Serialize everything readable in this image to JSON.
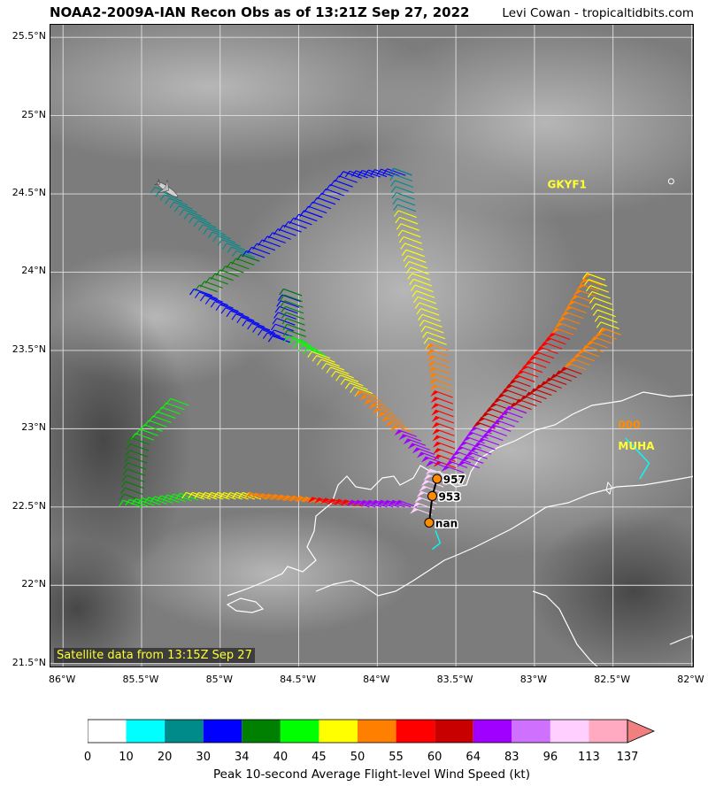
{
  "title": "NOAA2-2009A-IAN Recon Obs as of 13:21Z Sep 27, 2022",
  "credit": "Levi Cowan - tropicaltidbits.com",
  "satellite_note": "Satellite data from 13:15Z Sep 27",
  "map": {
    "lon_range": [
      -86.08,
      -81.98
    ],
    "lat_range": [
      21.47,
      25.58
    ],
    "lat_ticks": [
      {
        "v": 25.5,
        "label": "25.5°N"
      },
      {
        "v": 25.0,
        "label": "25°N"
      },
      {
        "v": 24.5,
        "label": "24.5°N"
      },
      {
        "v": 24.0,
        "label": "24°N"
      },
      {
        "v": 23.5,
        "label": "23.5°N"
      },
      {
        "v": 23.0,
        "label": "23°N"
      },
      {
        "v": 22.5,
        "label": "22.5°N"
      },
      {
        "v": 22.0,
        "label": "22°N"
      },
      {
        "v": 21.5,
        "label": "21.5°N"
      }
    ],
    "lon_ticks": [
      {
        "v": -86.0,
        "label": "86°W"
      },
      {
        "v": -85.5,
        "label": "85.5°W"
      },
      {
        "v": -85.0,
        "label": "85°W"
      },
      {
        "v": -84.5,
        "label": "84.5°W"
      },
      {
        "v": -84.0,
        "label": "84°W"
      },
      {
        "v": -83.5,
        "label": "83.5°W"
      },
      {
        "v": -83.0,
        "label": "83°W"
      },
      {
        "v": -82.5,
        "label": "82.5°W"
      },
      {
        "v": -82.0,
        "label": "82°W"
      }
    ],
    "stations": [
      {
        "id": "GKYF1",
        "lon": -82.85,
        "lat": 24.56,
        "color": "#ffff33",
        "value": ""
      },
      {
        "id": "MUHA",
        "lon": -82.4,
        "lat": 22.89,
        "color": "#ffff33",
        "value": "000",
        "value_color": "#ff8c00"
      }
    ],
    "pressure_obs": [
      {
        "label": "957",
        "lon": -83.62,
        "lat": 22.68
      },
      {
        "label": "953",
        "lon": -83.65,
        "lat": 22.57
      },
      {
        "label": "nan",
        "lon": -83.67,
        "lat": 22.4
      }
    ],
    "flight_segments": [
      {
        "from": [
          -85.3,
          24.5
        ],
        "to": [
          -84.75,
          24.07
        ],
        "kt": 22
      },
      {
        "from": [
          -84.75,
          24.07
        ],
        "to": [
          -84.35,
          24.35
        ],
        "kt": 32
      },
      {
        "from": [
          -84.35,
          24.35
        ],
        "to": [
          -84.1,
          24.6
        ],
        "kt": 30
      },
      {
        "from": [
          -84.1,
          24.6
        ],
        "to": [
          -83.78,
          24.62
        ],
        "kt": 30
      },
      {
        "from": [
          -83.78,
          24.62
        ],
        "to": [
          -83.75,
          24.35
        ],
        "kt": 28
      },
      {
        "from": [
          -83.75,
          24.35
        ],
        "to": [
          -83.7,
          24.1
        ],
        "kt": 45
      },
      {
        "from": [
          -83.7,
          24.1
        ],
        "to": [
          -83.55,
          23.5
        ],
        "kt": 47
      },
      {
        "from": [
          -83.55,
          23.5
        ],
        "to": [
          -83.52,
          23.2
        ],
        "kt": 52
      },
      {
        "from": [
          -83.52,
          23.2
        ],
        "to": [
          -83.5,
          22.75
        ],
        "kt": 58
      },
      {
        "from": [
          -84.75,
          24.07
        ],
        "to": [
          -85.05,
          23.85
        ],
        "kt": 36
      },
      {
        "from": [
          -85.05,
          23.85
        ],
        "to": [
          -84.55,
          23.55
        ],
        "kt": 30
      },
      {
        "from": [
          -84.55,
          23.55
        ],
        "to": [
          -84.48,
          23.85
        ],
        "kt": 30
      },
      {
        "from": [
          -84.48,
          23.85
        ],
        "to": [
          -84.45,
          23.55
        ],
        "kt": 36
      },
      {
        "from": [
          -84.45,
          23.55
        ],
        "to": [
          -84.3,
          23.45
        ],
        "kt": 40
      },
      {
        "from": [
          -84.3,
          23.45
        ],
        "to": [
          -84.0,
          23.2
        ],
        "kt": 46
      },
      {
        "from": [
          -84.0,
          23.2
        ],
        "to": [
          -83.75,
          22.95
        ],
        "kt": 52
      },
      {
        "from": [
          -83.75,
          22.95
        ],
        "to": [
          -83.55,
          22.75
        ],
        "kt": 70
      },
      {
        "from": [
          -85.2,
          23.15
        ],
        "to": [
          -85.45,
          22.9
        ],
        "kt": 40
      },
      {
        "from": [
          -85.45,
          22.9
        ],
        "to": [
          -85.5,
          22.5
        ],
        "kt": 36
      },
      {
        "from": [
          -85.5,
          22.5
        ],
        "to": [
          -85.1,
          22.55
        ],
        "kt": 42
      },
      {
        "from": [
          -85.1,
          22.55
        ],
        "to": [
          -84.7,
          22.55
        ],
        "kt": 47
      },
      {
        "from": [
          -84.7,
          22.55
        ],
        "to": [
          -84.3,
          22.52
        ],
        "kt": 52
      },
      {
        "from": [
          -84.3,
          22.52
        ],
        "to": [
          -84.05,
          22.5
        ],
        "kt": 58
      },
      {
        "from": [
          -84.05,
          22.5
        ],
        "to": [
          -83.75,
          22.5
        ],
        "kt": 70
      },
      {
        "from": [
          -83.45,
          22.72
        ],
        "to": [
          -83.25,
          23.0
        ],
        "kt": 75
      },
      {
        "from": [
          -83.25,
          23.0
        ],
        "to": [
          -83.0,
          23.3
        ],
        "kt": 62
      },
      {
        "from": [
          -83.0,
          23.3
        ],
        "to": [
          -82.75,
          23.6
        ],
        "kt": 57
      },
      {
        "from": [
          -82.75,
          23.6
        ],
        "to": [
          -82.55,
          23.95
        ],
        "kt": 50
      },
      {
        "from": [
          -82.55,
          23.95
        ],
        "to": [
          -82.45,
          23.6
        ],
        "kt": 45
      },
      {
        "from": [
          -82.45,
          23.6
        ],
        "to": [
          -82.7,
          23.35
        ],
        "kt": 52
      },
      {
        "from": [
          -82.7,
          23.35
        ],
        "to": [
          -83.05,
          23.1
        ],
        "kt": 60
      },
      {
        "from": [
          -83.05,
          23.1
        ],
        "to": [
          -83.35,
          22.75
        ],
        "kt": 80
      },
      {
        "from": [
          -83.65,
          22.45
        ],
        "to": [
          -83.55,
          22.7
        ],
        "kt": 100
      }
    ]
  },
  "colorbar": {
    "title": "Peak 10-second Average Flight-level Wind Speed (kt)",
    "bounds": [
      "0",
      "10",
      "20",
      "30",
      "34",
      "40",
      "45",
      "50",
      "55",
      "60",
      "64",
      "83",
      "96",
      "113",
      "137"
    ],
    "colors": [
      "#ffffff",
      "#00ffff",
      "#008b8b",
      "#0000ff",
      "#008000",
      "#00ff00",
      "#ffff00",
      "#ff7f00",
      "#ff0000",
      "#c80000",
      "#a000ff",
      "#d070ff",
      "#ffd0ff",
      "#ffaac0"
    ],
    "extend_color": "#f08080"
  }
}
